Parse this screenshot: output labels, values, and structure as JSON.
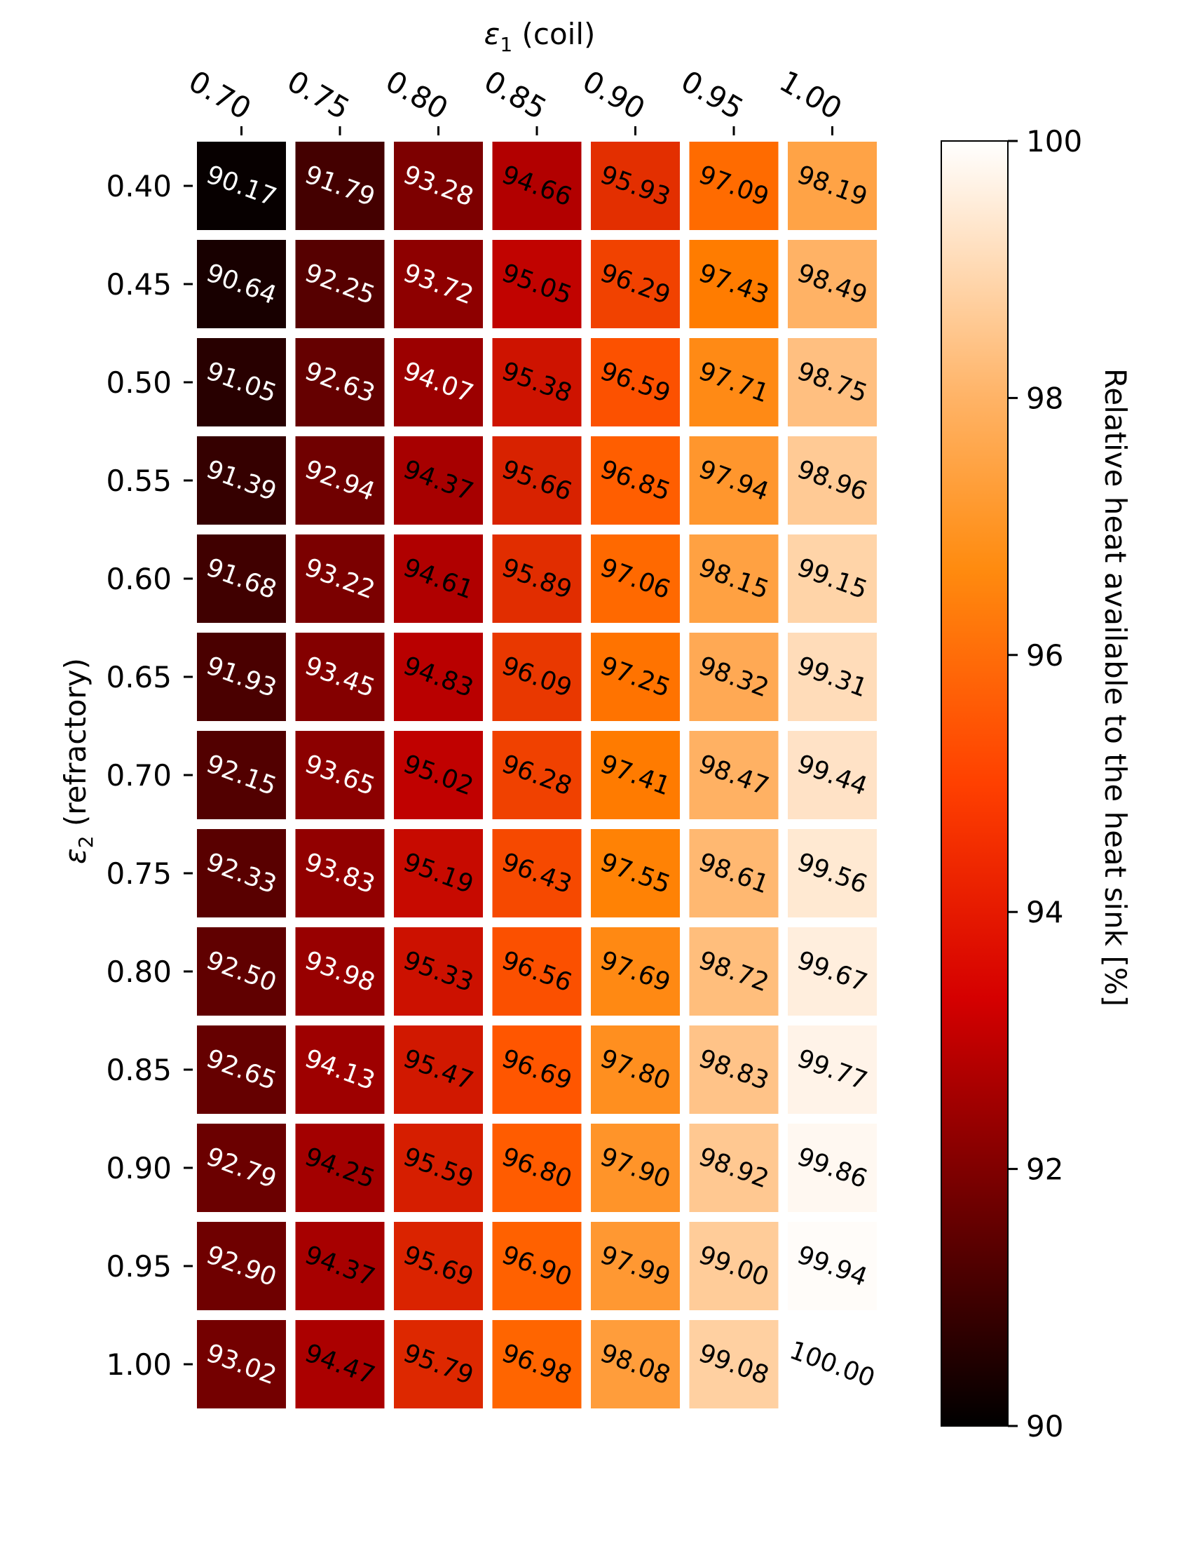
{
  "chart_data": {
    "type": "heatmap",
    "title": "",
    "xlabel_symbol": "ε",
    "xlabel_sub": "1",
    "xlabel_rest": " (coil)",
    "ylabel_symbol": "ε",
    "ylabel_sub": "2",
    "ylabel_rest": " (refractory)",
    "x_categories": [
      "0.70",
      "0.75",
      "0.80",
      "0.85",
      "0.90",
      "0.95",
      "1.00"
    ],
    "y_categories": [
      "0.40",
      "0.45",
      "0.50",
      "0.55",
      "0.60",
      "0.65",
      "0.70",
      "0.75",
      "0.80",
      "0.85",
      "0.90",
      "0.95",
      "1.00"
    ],
    "values": [
      [
        90.17,
        91.79,
        93.28,
        94.66,
        95.93,
        97.09,
        98.19
      ],
      [
        90.64,
        92.25,
        93.72,
        95.05,
        96.29,
        97.43,
        98.49
      ],
      [
        91.05,
        92.63,
        94.07,
        95.38,
        96.59,
        97.71,
        98.75
      ],
      [
        91.39,
        92.94,
        94.37,
        95.66,
        96.85,
        97.94,
        98.96
      ],
      [
        91.68,
        93.22,
        94.61,
        95.89,
        97.06,
        98.15,
        99.15
      ],
      [
        91.93,
        93.45,
        94.83,
        96.09,
        97.25,
        98.32,
        99.31
      ],
      [
        92.15,
        93.65,
        95.02,
        96.28,
        97.41,
        98.47,
        99.44
      ],
      [
        92.33,
        93.83,
        95.19,
        96.43,
        97.55,
        98.61,
        99.56
      ],
      [
        92.5,
        93.98,
        95.33,
        96.56,
        97.69,
        98.72,
        99.67
      ],
      [
        92.65,
        94.13,
        95.47,
        96.69,
        97.8,
        98.83,
        99.77
      ],
      [
        92.79,
        94.25,
        95.59,
        96.8,
        97.9,
        98.92,
        99.86
      ],
      [
        92.9,
        94.37,
        95.69,
        96.9,
        97.99,
        99.0,
        99.94
      ],
      [
        93.02,
        94.47,
        95.79,
        96.98,
        98.08,
        99.08,
        100.0
      ]
    ],
    "colorbar": {
      "label": "Relative heat available to the heat sink [%]",
      "range": [
        90,
        100
      ],
      "ticks": [
        "90",
        "92",
        "94",
        "96",
        "98",
        "100"
      ],
      "colormap": "gist_heat"
    }
  }
}
